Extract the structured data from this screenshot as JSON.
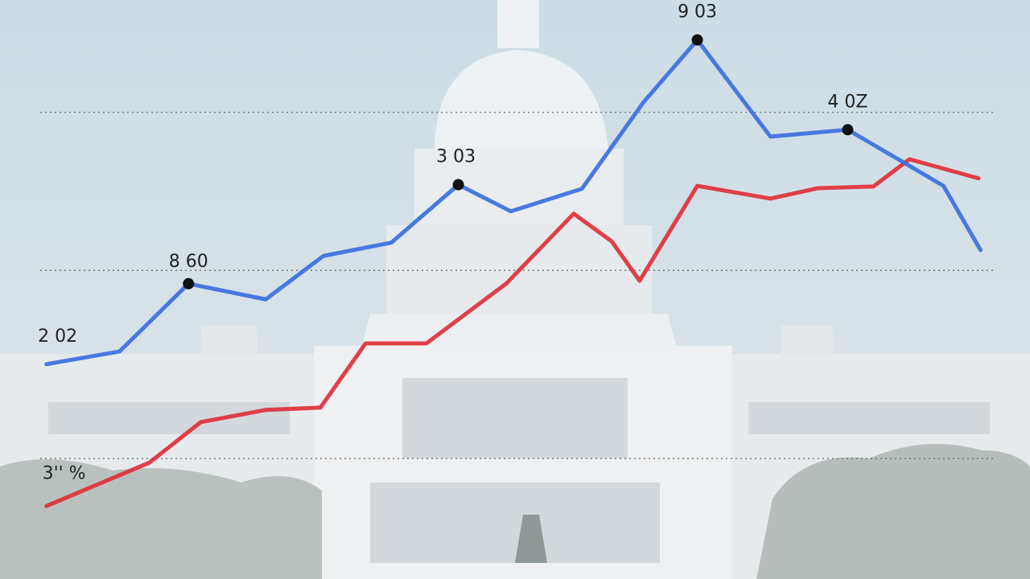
{
  "chart_data": {
    "type": "line",
    "xlim": [
      0,
      100
    ],
    "ylim": [
      0,
      100
    ],
    "yticks": [
      20.8,
      53.3,
      80.6
    ],
    "grid": true,
    "series": [
      {
        "color": "#3a6fe0",
        "x": [
          4.5,
          11.6,
          18.3,
          25.8,
          31.4,
          38.0,
          44.5,
          49.6,
          56.5,
          62.5,
          67.7,
          74.8,
          82.3,
          91.6,
          95.2
        ],
        "values": [
          37.1,
          39.3,
          51.0,
          48.3,
          55.8,
          58.1,
          68.1,
          63.5,
          67.4,
          82.4,
          93.1,
          76.4,
          77.6,
          67.9,
          56.8
        ]
      },
      {
        "color": "#e0303a",
        "x": [
          4.5,
          14.5,
          19.5,
          25.8,
          31.1,
          35.5,
          41.4,
          49.2,
          55.7,
          59.4,
          62.1,
          67.7,
          74.8,
          79.4,
          84.8,
          88.3,
          95.0
        ],
        "values": [
          12.6,
          20.1,
          27.1,
          29.2,
          29.6,
          40.7,
          40.7,
          51.1,
          63.1,
          58.3,
          51.5,
          67.9,
          65.7,
          67.5,
          67.8,
          72.5,
          69.2
        ]
      }
    ],
    "annotations": [
      "2 02",
      "8 60",
      "3 03",
      "9 03",
      "4 0Z",
      "3'' %"
    ]
  }
}
